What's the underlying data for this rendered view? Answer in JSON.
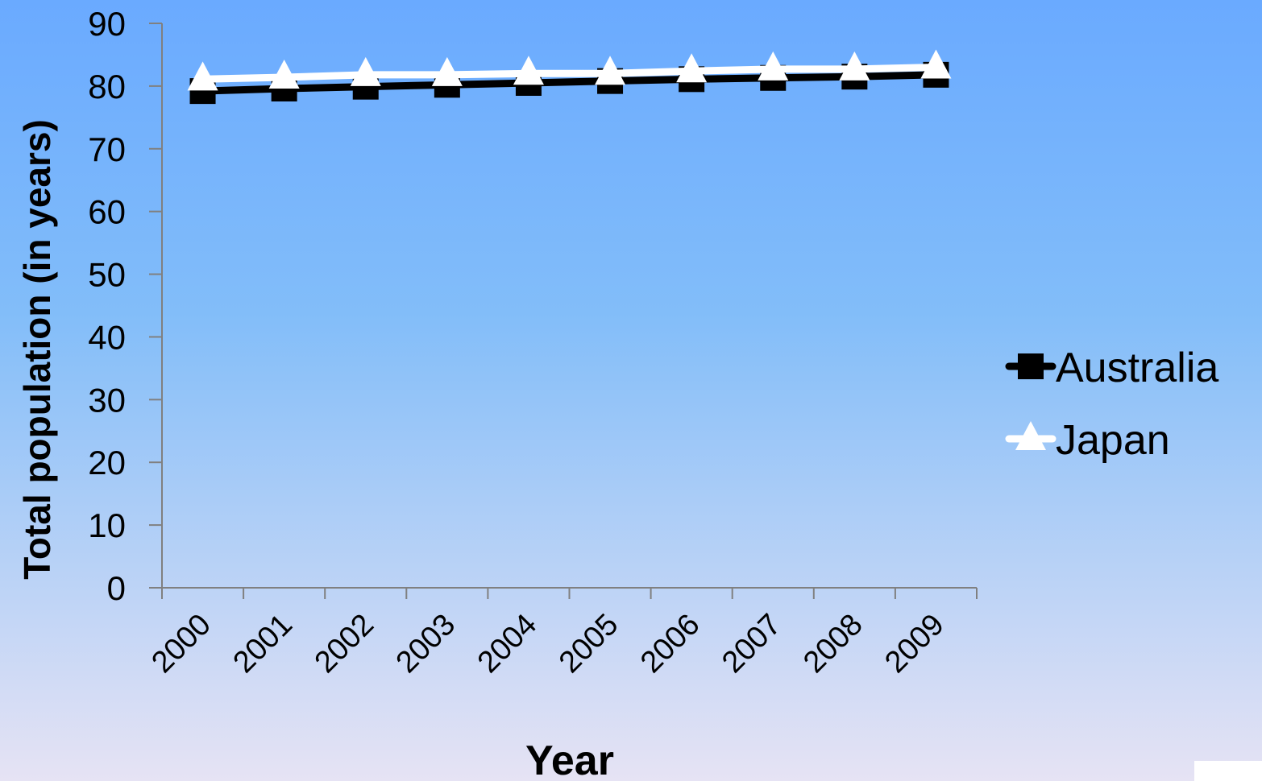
{
  "colors": {
    "background_top": "#6aaaff",
    "background_middle": "#82bdf9",
    "background_bottom": "#e6e3f4",
    "axis": "#808080",
    "text": "#000000",
    "australia_series": "#000000",
    "japan_series": "#ffffff"
  },
  "chart_data": {
    "type": "line",
    "title": "",
    "xlabel": "Year",
    "ylabel": "Total population (in years)",
    "categories": [
      "2000",
      "2001",
      "2002",
      "2003",
      "2004",
      "2005",
      "2006",
      "2007",
      "2008",
      "2009"
    ],
    "ylim": [
      0,
      90
    ],
    "yticks": [
      0,
      10,
      20,
      30,
      40,
      50,
      60,
      70,
      80,
      90
    ],
    "grid": false,
    "legend_position": "right",
    "series": [
      {
        "name": "Australia",
        "marker": "square",
        "color": "#000000",
        "values": [
          79.2,
          79.6,
          79.9,
          80.2,
          80.5,
          80.8,
          81.1,
          81.3,
          81.5,
          81.8
        ]
      },
      {
        "name": "Japan",
        "marker": "triangle",
        "color": "#ffffff",
        "values": [
          81.1,
          81.4,
          81.8,
          81.8,
          82.0,
          82.0,
          82.4,
          82.7,
          82.7,
          83.0
        ]
      }
    ]
  }
}
